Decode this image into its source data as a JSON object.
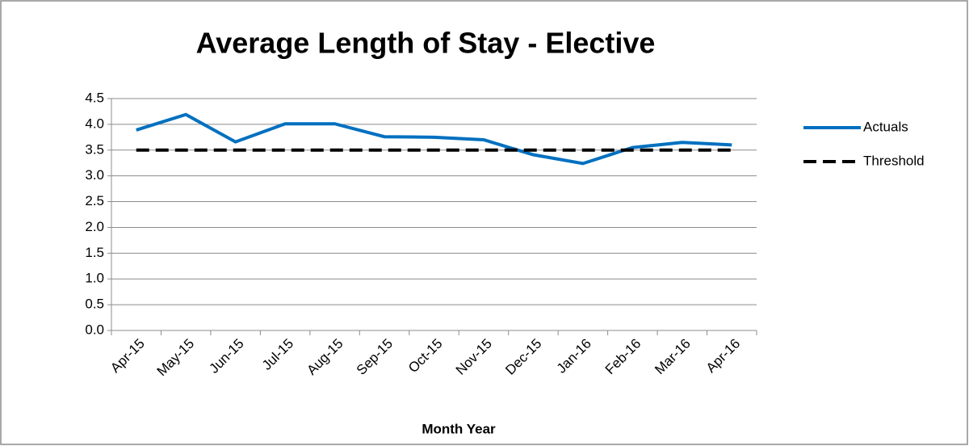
{
  "chart_data": {
    "type": "line",
    "title": "Average Length of Stay - Elective",
    "x_label": "Month Year",
    "categories": [
      "Apr-15",
      "May-15",
      "Jun-15",
      "Jul-15",
      "Aug-15",
      "Sep-15",
      "Oct-15",
      "Nov-15",
      "Dec-15",
      "Jan-16",
      "Feb-16",
      "Mar-16",
      "Apr-16"
    ],
    "series": [
      {
        "name": "Actuals",
        "color": "#0070c0",
        "linestyle": "solid",
        "values": [
          3.89,
          4.19,
          3.66,
          4.01,
          4.01,
          3.76,
          3.75,
          3.7,
          3.41,
          3.24,
          3.55,
          3.65,
          3.6
        ]
      },
      {
        "name": "Threshold",
        "color": "#000000",
        "linestyle": "dashed",
        "values": [
          3.5,
          3.5,
          3.5,
          3.5,
          3.5,
          3.5,
          3.5,
          3.5,
          3.5,
          3.5,
          3.5,
          3.5,
          3.5
        ]
      }
    ],
    "ylim": [
      0,
      4.5
    ],
    "yticks": [
      {
        "value": 0,
        "label": "0.0"
      },
      0.5,
      {
        "value": 1,
        "label": "1.0"
      },
      1.5,
      {
        "value": 2,
        "label": "2.0"
      },
      2.5,
      {
        "value": 3,
        "label": "3.0"
      },
      3.5,
      {
        "value": 4,
        "label": "4.0"
      },
      4.5
    ],
    "grid": true,
    "legend": "right"
  }
}
